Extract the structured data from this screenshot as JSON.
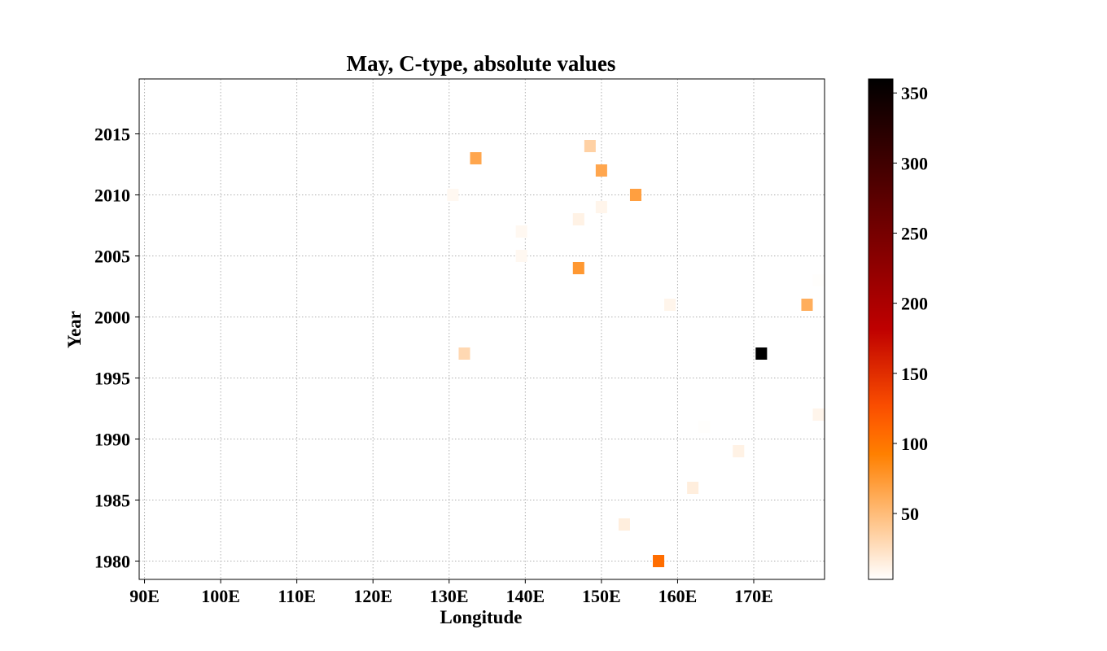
{
  "chart_data": {
    "type": "heatmap",
    "title": "May, C-type, absolute values",
    "xlabel": "Longitude",
    "ylabel": "Year",
    "xlim": [
      89.3,
      179.3
    ],
    "ylim": [
      1978.5,
      2019.5
    ],
    "x_ticks": [
      90,
      100,
      110,
      120,
      130,
      140,
      150,
      160,
      170
    ],
    "x_tick_labels": [
      "90E",
      "100E",
      "110E",
      "120E",
      "130E",
      "140E",
      "150E",
      "160E",
      "170E"
    ],
    "y_ticks": [
      1980,
      1985,
      1990,
      1995,
      2000,
      2005,
      2010,
      2015
    ],
    "y_tick_labels": [
      "1980",
      "1985",
      "1990",
      "1995",
      "2000",
      "2005",
      "2010",
      "2015"
    ],
    "grid": true,
    "colorbar": {
      "colormap": "gist_heat_r",
      "range": [
        3,
        360
      ],
      "ticks": [
        50,
        100,
        150,
        200,
        250,
        300,
        350
      ],
      "tick_labels": [
        "50",
        "100",
        "150",
        "200",
        "250",
        "300",
        "350"
      ]
    },
    "cells": [
      {
        "lon": 157.5,
        "year": 1980,
        "value": 105
      },
      {
        "lon": 153.0,
        "year": 1983,
        "value": 15
      },
      {
        "lon": 162.0,
        "year": 1986,
        "value": 15
      },
      {
        "lon": 168.0,
        "year": 1989,
        "value": 12
      },
      {
        "lon": 163.5,
        "year": 1991,
        "value": 4
      },
      {
        "lon": 178.5,
        "year": 1992,
        "value": 10
      },
      {
        "lon": 171.0,
        "year": 1997,
        "value": 360
      },
      {
        "lon": 132.0,
        "year": 1997,
        "value": 30
      },
      {
        "lon": 159.0,
        "year": 2001,
        "value": 10
      },
      {
        "lon": 177.0,
        "year": 2001,
        "value": 60
      },
      {
        "lon": 178.5,
        "year": 2003,
        "value": 4
      },
      {
        "lon": 147.0,
        "year": 2004,
        "value": 75
      },
      {
        "lon": 139.5,
        "year": 2005,
        "value": 8
      },
      {
        "lon": 139.5,
        "year": 2007,
        "value": 8
      },
      {
        "lon": 147.0,
        "year": 2008,
        "value": 12
      },
      {
        "lon": 150.0,
        "year": 2009,
        "value": 10
      },
      {
        "lon": 130.5,
        "year": 2010,
        "value": 8
      },
      {
        "lon": 154.5,
        "year": 2010,
        "value": 70
      },
      {
        "lon": 150.0,
        "year": 2012,
        "value": 65
      },
      {
        "lon": 133.5,
        "year": 2013,
        "value": 65
      },
      {
        "lon": 148.5,
        "year": 2014,
        "value": 35
      }
    ]
  }
}
